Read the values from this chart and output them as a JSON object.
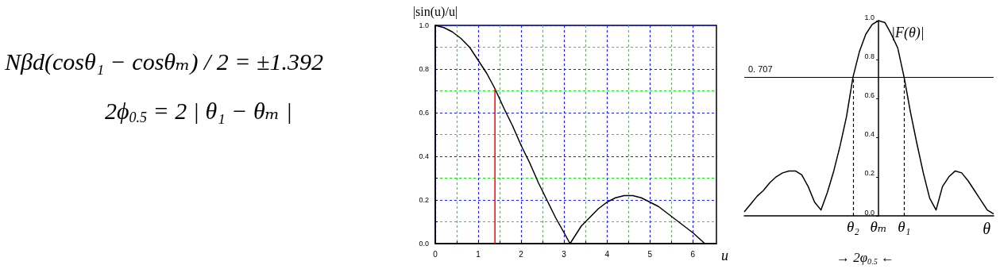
{
  "chart_data": [
    {
      "type": "other",
      "annotations": [
        "Nβd(cosθ₁ − cosθₘ) / 2 = ±1.392",
        "2ϕ$_{0.5}$ = 2 | θ₁ − θₘ |"
      ]
    },
    {
      "type": "line",
      "xlabel": "u",
      "ylabel": "|sin(u)/u|",
      "xlim": [
        0,
        6.55
      ],
      "xticks": [
        0,
        {
          "value": 0.5,
          "label": null
        },
        1,
        {
          "value": 1.5,
          "label": null
        },
        2,
        {
          "value": 2.5,
          "label": null
        },
        3,
        {
          "value": 3.5,
          "label": null
        },
        4,
        {
          "value": 4.5,
          "label": null
        },
        5,
        {
          "value": 5.5,
          "label": null
        },
        6
      ],
      "ylim": [
        0,
        1
      ],
      "yticks": [
        {
          "value": 0,
          "label": "0.0"
        },
        {
          "value": 0.1,
          "label": null
        },
        0.2,
        {
          "value": 0.3,
          "label": null
        },
        0.4,
        {
          "value": 0.5,
          "label": null
        },
        0.6,
        {
          "value": 0.7,
          "label": null
        },
        0.8,
        {
          "value": 0.9,
          "label": null
        },
        {
          "value": 1,
          "label": "1.0"
        }
      ],
      "grid": true,
      "marker": "none",
      "series": [
        {
          "color": "#000000",
          "x": [
            0,
            0.2,
            0.4,
            0.6,
            0.8,
            1.0,
            1.2,
            1.39,
            1.6,
            1.8,
            2.0,
            2.2,
            2.4,
            2.6,
            2.8,
            3.0,
            3.14,
            3.4,
            3.6,
            3.8,
            4.0,
            4.2,
            4.4,
            4.6,
            4.8,
            5.0,
            5.2,
            5.4,
            5.6,
            5.8,
            6.0,
            6.28
          ],
          "values": [
            1.0,
            0.99,
            0.97,
            0.94,
            0.9,
            0.84,
            0.78,
            0.71,
            0.62,
            0.54,
            0.45,
            0.37,
            0.28,
            0.2,
            0.12,
            0.05,
            0.0,
            0.08,
            0.12,
            0.16,
            0.19,
            0.21,
            0.22,
            0.22,
            0.21,
            0.19,
            0.17,
            0.14,
            0.11,
            0.08,
            0.05,
            0.0
          ]
        },
        {
          "color": "#ff0000",
          "x": [
            1.39,
            1.39
          ],
          "values": [
            0,
            0.71
          ]
        }
      ]
    },
    {
      "type": "line",
      "xlabel": "θ",
      "ylabel": "|F(θ)|",
      "categories": [
        null,
        null,
        null,
        null,
        null,
        null,
        null,
        null,
        null,
        null,
        null,
        null,
        null,
        null,
        null,
        null,
        null,
        "θ₂",
        null,
        null,
        null,
        "θₘ",
        null,
        null,
        null,
        "θ₁",
        null,
        null,
        null,
        null,
        null,
        null,
        null,
        null,
        null,
        null,
        null,
        null,
        null,
        null
      ],
      "ylim": [
        0,
        1
      ],
      "yticks": [
        {
          "value": 0,
          "label": "0.0"
        },
        0.2,
        0.4,
        0.6,
        0.8,
        {
          "value": 1,
          "label": "1.0"
        }
      ],
      "marker": "none",
      "series": [
        {
          "color": "#000000",
          "values": [
            0.02,
            0.06,
            0.1,
            0.13,
            0.17,
            0.2,
            0.22,
            0.23,
            0.23,
            0.21,
            0.15,
            0.07,
            0.03,
            0.12,
            0.23,
            0.36,
            0.51,
            0.71,
            0.84,
            0.93,
            0.98,
            1.0,
            0.99,
            0.93,
            0.86,
            0.71,
            0.53,
            0.37,
            0.22,
            0.09,
            0.03,
            0.15,
            0.2,
            0.23,
            0.22,
            0.18,
            0.13,
            0.08,
            0.03,
            0.01
          ]
        }
      ],
      "ref_lines": [
        {
          "axis": "y",
          "value": 0.707,
          "label": "0. 707"
        },
        {
          "axis": "x",
          "value": "θ₂",
          "line_style": "dashed"
        },
        {
          "axis": "x",
          "value": "θ₁",
          "line_style": "dashed"
        }
      ],
      "annotations": [
        "→ 2φ$_{0.5}$ ←"
      ]
    }
  ]
}
